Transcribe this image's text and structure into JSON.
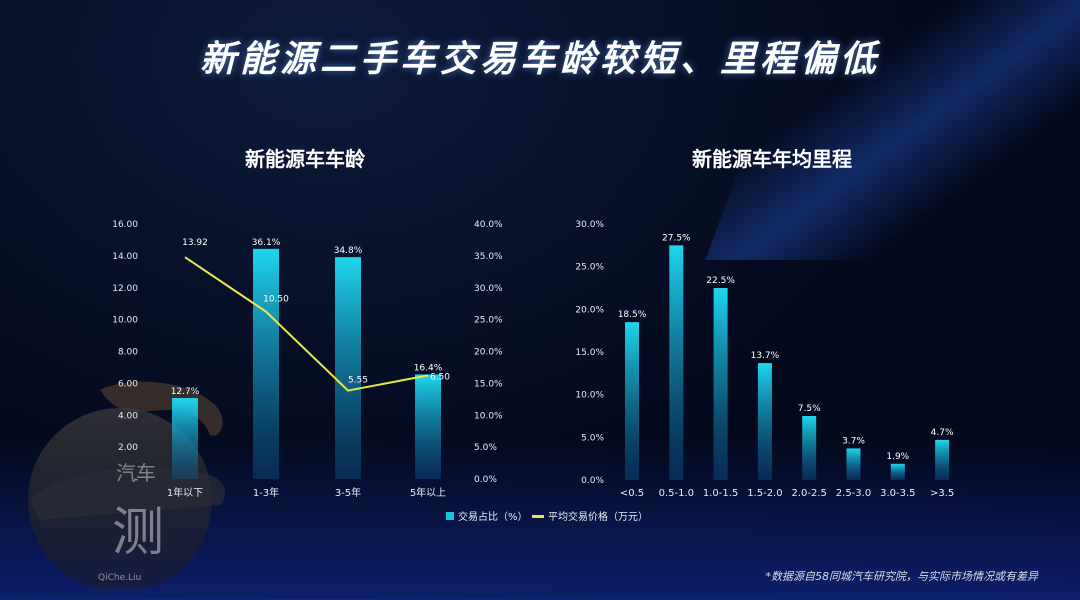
{
  "page": {
    "title": "新能源二手车交易车龄较短、里程偏低",
    "footnote": "*数据源自58同城汽车研究院，与实际市场情况或有差异",
    "watermark": {
      "glyph_top": "汽车",
      "glyph_main": "测",
      "text": "QiChe.Liu"
    }
  },
  "colors": {
    "bar": "#17c4dc",
    "line": "#e7e84a",
    "text": "#e8ecf5"
  },
  "chart_data": [
    {
      "type": "bar+line",
      "title": "新能源车车龄",
      "categories": [
        "1年以下",
        "1-3年",
        "3-5年",
        "5年以上"
      ],
      "series": [
        {
          "name": "交易占比（%）",
          "type": "bar",
          "axis": "right",
          "values": [
            12.7,
            36.1,
            34.8,
            16.4
          ],
          "labels": [
            "12.7%",
            "36.1%",
            "34.8%",
            "16.4%"
          ]
        },
        {
          "name": "平均交易价格（万元）",
          "type": "line",
          "axis": "left",
          "values": [
            13.92,
            10.5,
            5.55,
            6.5
          ],
          "labels": [
            "13.92",
            "10.50",
            "5.55",
            "6.50"
          ]
        }
      ],
      "left_axis": {
        "min": 0,
        "max": 16,
        "ticks": [
          "16.00",
          "14.00",
          "12.00",
          "10.00",
          "8.00",
          "6.00",
          "4.00",
          "2.00",
          "-"
        ]
      },
      "right_axis": {
        "min": 0,
        "max": 40,
        "ticks": [
          "40.0%",
          "35.0%",
          "30.0%",
          "25.0%",
          "20.0%",
          "15.0%",
          "10.0%",
          "5.0%",
          "0.0%"
        ]
      },
      "legend": [
        "交易占比（%）",
        "平均交易价格（万元）"
      ],
      "legend_position": "bottom"
    },
    {
      "type": "bar",
      "title": "新能源车年均里程",
      "categories": [
        "<0.5",
        "0.5-1.0",
        "1.0-1.5",
        "1.5-2.0",
        "2.0-2.5",
        "2.5-3.0",
        "3.0-3.5",
        ">3.5"
      ],
      "values": [
        18.5,
        27.5,
        22.5,
        13.7,
        7.5,
        3.7,
        1.9,
        4.7
      ],
      "labels": [
        "18.5%",
        "27.5%",
        "22.5%",
        "13.7%",
        "7.5%",
        "3.7%",
        "1.9%",
        "4.7%"
      ],
      "y_axis": {
        "min": 0,
        "max": 30,
        "ticks": [
          "30.0%",
          "25.0%",
          "20.0%",
          "15.0%",
          "10.0%",
          "5.0%",
          "0.0%"
        ]
      }
    }
  ]
}
